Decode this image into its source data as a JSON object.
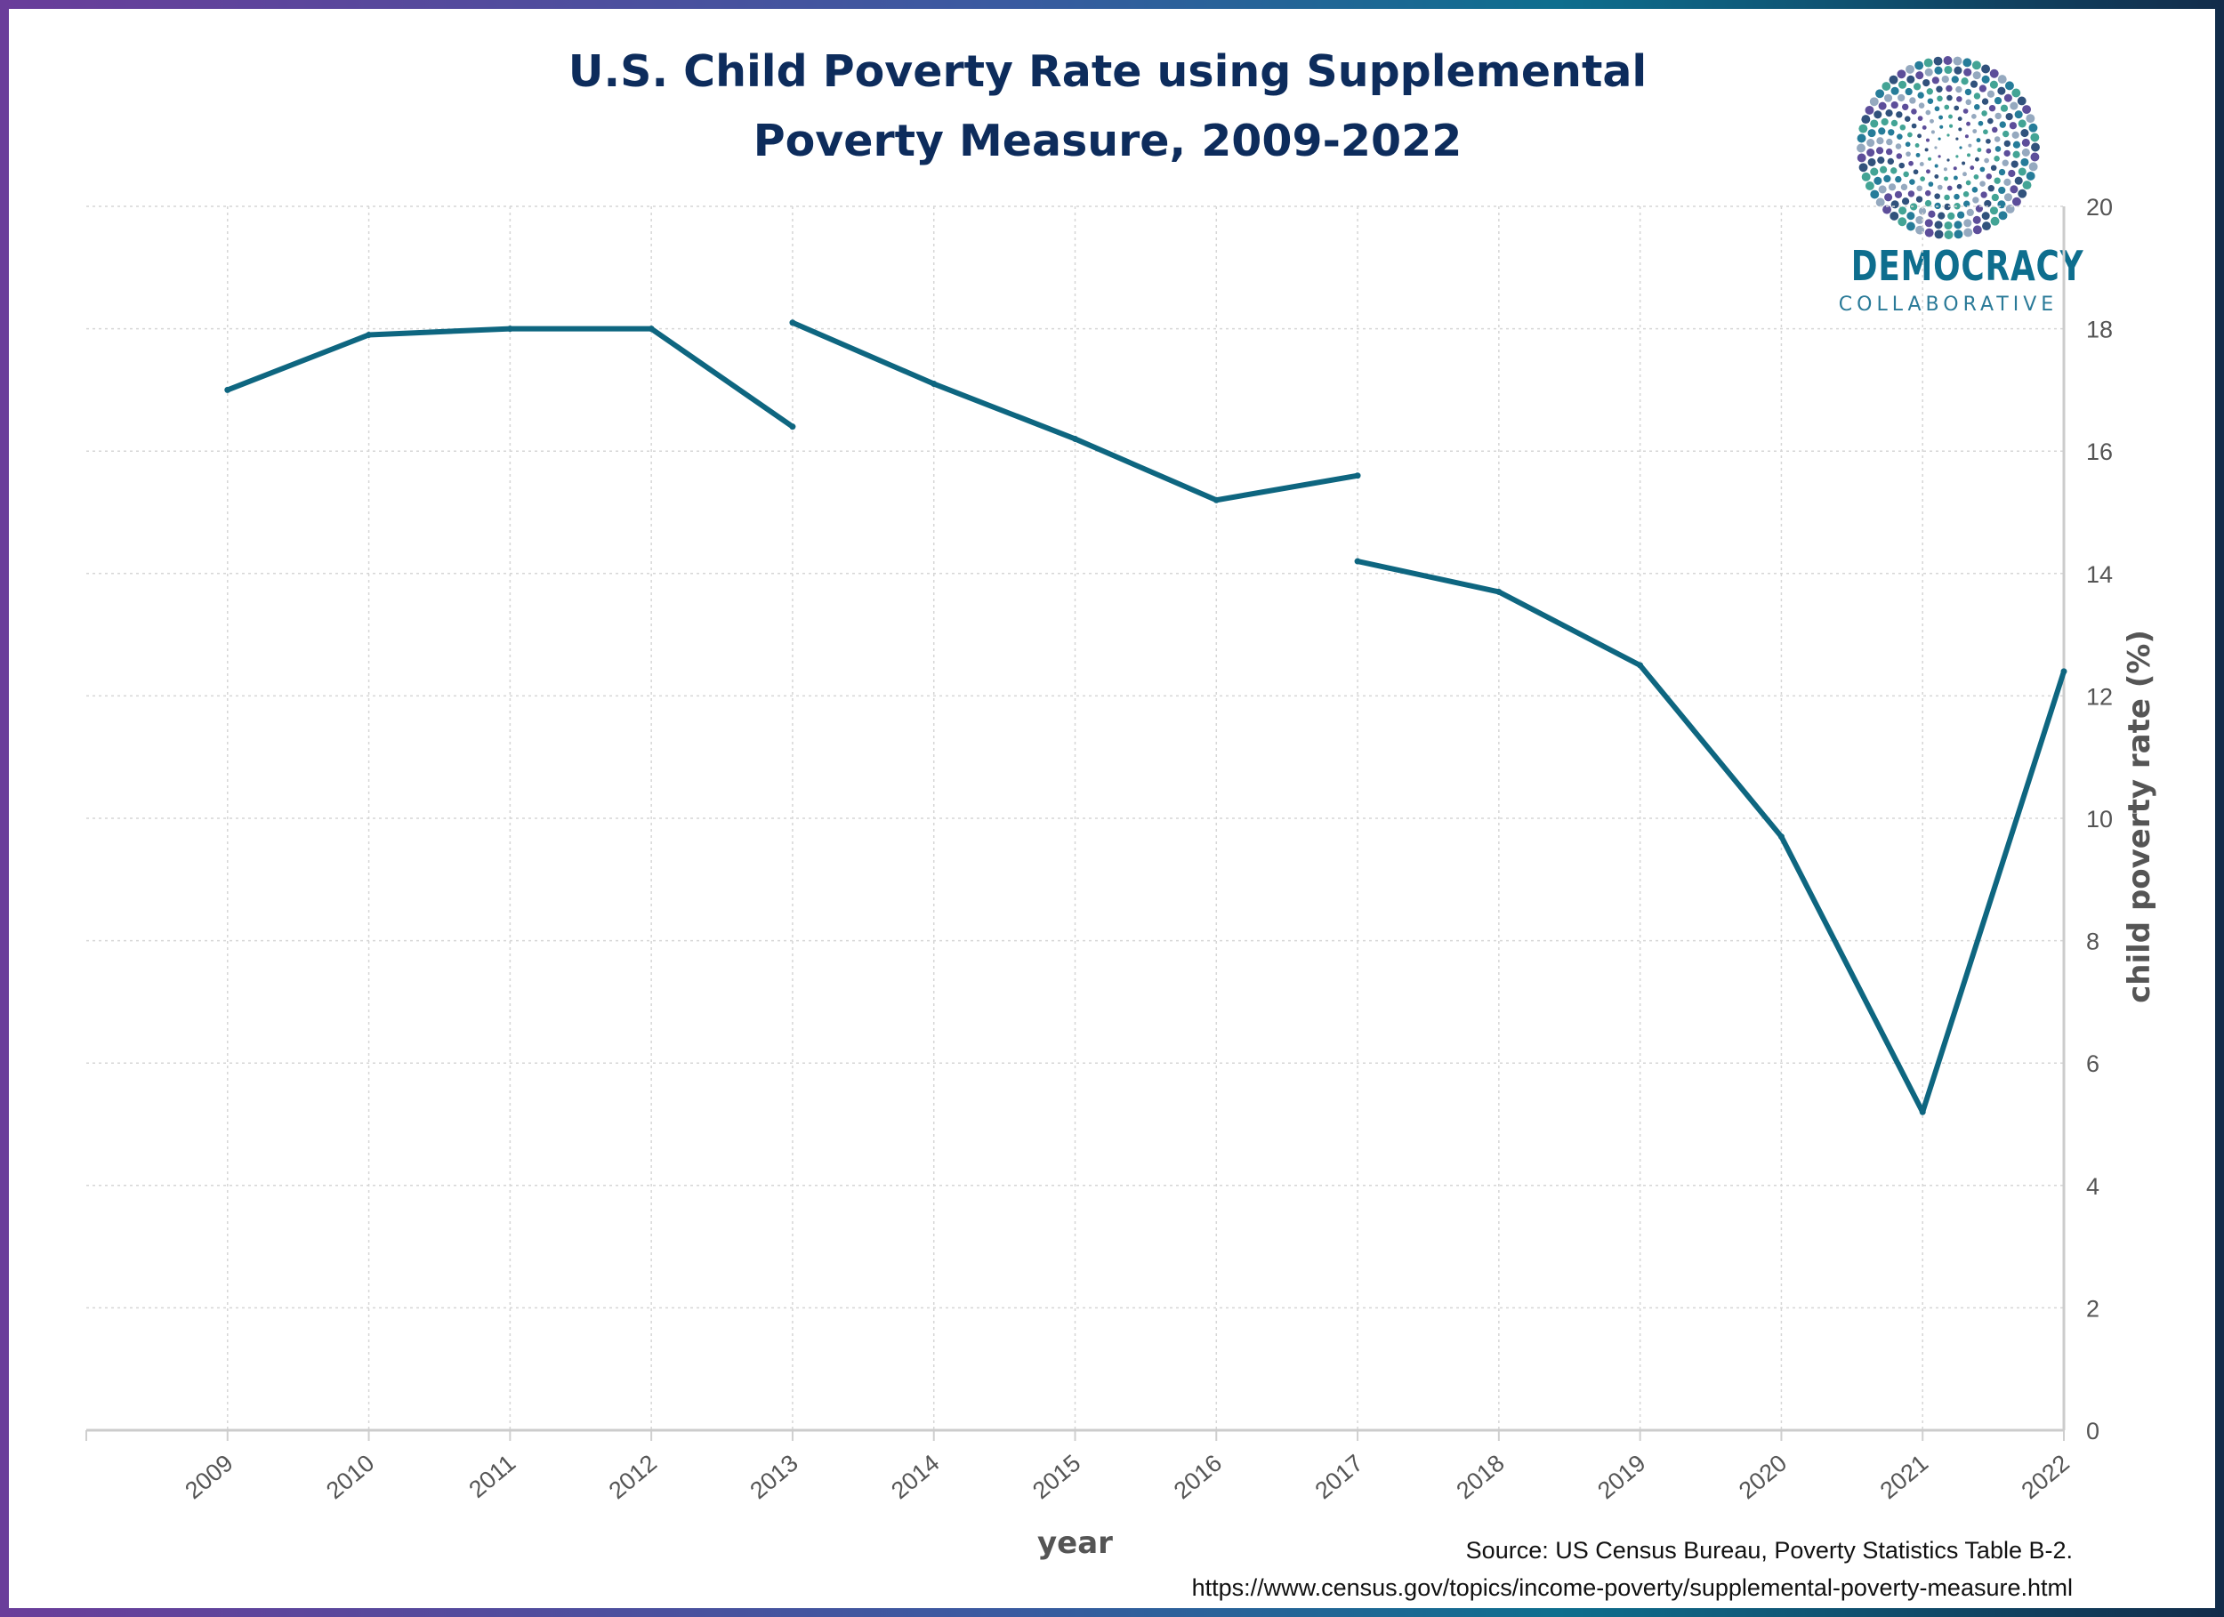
{
  "title": {
    "line1": "U.S. Child Poverty Rate using Supplemental",
    "line2": "Poverty Measure, 2009-2022"
  },
  "logo": {
    "word1": "DEMOCRACY",
    "word2": "COLLABORATIVE",
    "colors": [
      "#0e6e8e",
      "#4b3b8f",
      "#2f9a8a",
      "#8aa0b8",
      "#1b3f6e"
    ]
  },
  "source": {
    "line1": "Source: US Census Bureau, Poverty Statistics Table B-2.",
    "line2": "https://www.census.gov/topics/income-poverty/supplemental-poverty-measure.html"
  },
  "chart_data": {
    "type": "line",
    "xlabel": "year",
    "ylabel": "child poverty rate (%)",
    "ylim": [
      0,
      20
    ],
    "yticks": [
      0,
      2,
      4,
      6,
      8,
      10,
      12,
      14,
      16,
      18,
      20
    ],
    "y_axis_side": "right",
    "grid": true,
    "line_color": "#0e6680",
    "x": [
      2009,
      2010,
      2011,
      2012,
      2013,
      2014,
      2015,
      2016,
      2017,
      2018,
      2019,
      2020,
      2021,
      2022
    ],
    "series": [
      {
        "segments": [
          {
            "x": [
              2009,
              2010,
              2011,
              2012,
              2013
            ],
            "values": [
              17.0,
              17.9,
              18.0,
              18.0,
              16.4
            ]
          },
          {
            "x": [
              2013,
              2014,
              2015,
              2016,
              2017
            ],
            "values": [
              18.1,
              17.1,
              16.2,
              15.2,
              15.6
            ]
          },
          {
            "x": [
              2017,
              2018,
              2019,
              2020,
              2021,
              2022
            ],
            "values": [
              14.2,
              13.7,
              12.5,
              9.7,
              5.2,
              12.4
            ]
          }
        ]
      }
    ]
  }
}
